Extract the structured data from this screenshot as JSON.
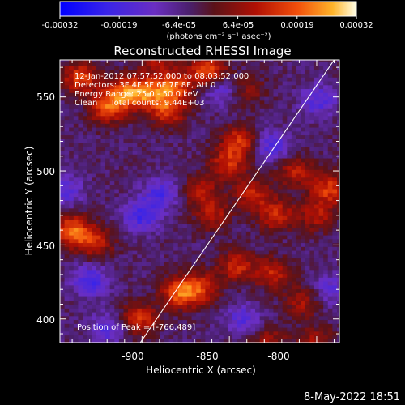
{
  "chart_data": {
    "type": "heatmap",
    "title": "Reconstructed RHESSI Image",
    "xlabel": "Heliocentric X (arcsec)",
    "ylabel": "Heliocentric Y (arcsec)",
    "xlim": [
      -947,
      -787
    ],
    "ylim": [
      384,
      575
    ],
    "xticks": [
      "-900",
      "-850",
      "-800"
    ],
    "yticks": [
      "400",
      "450",
      "500",
      "550"
    ],
    "colorbar": {
      "min": -0.00032,
      "max": 0.00032,
      "ticks": [
        "-0.00032",
        "-0.00019",
        "-6.4e-05",
        "6.4e-05",
        "0.00019",
        "0.00032"
      ],
      "units_label": "(photons cm⁻² s⁻¹ asec⁻²)"
    },
    "annotations": {
      "time_range": "12-Jan-2012 07:57:52.000 to 08:03:52.000",
      "detectors": "Detectors: 3F 4F 5F 6F 7F 8F, Att 0",
      "energy_range": "Energy Range: 25.0 - 50.0 keV",
      "clean_total": "Clean     Total counts: 9.44E+03",
      "peak_position": "Position of Peak = [-766,489]"
    },
    "limb_line": {
      "from": [
        -901,
        384
      ],
      "to": [
        -790,
        575
      ]
    },
    "hot_spots": [
      {
        "x": -935,
        "y": 563,
        "v": 0.00021
      },
      {
        "x": -909,
        "y": 553,
        "v": 0.00023
      },
      {
        "x": -896,
        "y": 553,
        "v": 0.00021
      },
      {
        "x": -881,
        "y": 557,
        "v": 0.0002
      },
      {
        "x": -862,
        "y": 568,
        "v": 0.00024
      },
      {
        "x": -885,
        "y": 541,
        "v": 0.00018
      },
      {
        "x": -920,
        "y": 543,
        "v": 0.00021
      },
      {
        "x": -844,
        "y": 520,
        "v": 0.00019
      },
      {
        "x": -851,
        "y": 505,
        "v": 0.00017
      },
      {
        "x": -836,
        "y": 485,
        "v": 0.00016
      },
      {
        "x": -866,
        "y": 486,
        "v": 0.00014
      },
      {
        "x": -859,
        "y": 470,
        "v": 0.00013
      },
      {
        "x": -823,
        "y": 470,
        "v": 0.00017
      },
      {
        "x": -812,
        "y": 500,
        "v": 0.00015
      },
      {
        "x": -800,
        "y": 470,
        "v": 0.00014
      },
      {
        "x": -766,
        "y": 489,
        "v": 0.00032
      },
      {
        "x": -793,
        "y": 488,
        "v": 0.00019
      },
      {
        "x": -940,
        "y": 460,
        "v": 0.00023
      },
      {
        "x": -927,
        "y": 452,
        "v": 0.00017
      },
      {
        "x": -902,
        "y": 400,
        "v": 0.00019
      },
      {
        "x": -879,
        "y": 418,
        "v": 0.00022
      },
      {
        "x": -867,
        "y": 421,
        "v": 0.00018
      },
      {
        "x": -846,
        "y": 436,
        "v": 0.00017
      },
      {
        "x": -825,
        "y": 431,
        "v": 0.00016
      },
      {
        "x": -808,
        "y": 412,
        "v": 0.00013
      },
      {
        "x": -828,
        "y": 385,
        "v": 0.00012
      },
      {
        "x": -801,
        "y": 385,
        "v": 0.00012
      },
      {
        "x": -891,
        "y": 575,
        "v": 0.00013
      },
      {
        "x": -840,
        "y": 555,
        "v": 0.0001
      }
    ],
    "cold_spots": [
      {
        "x": -900,
        "y": 470,
        "v": -0.00016
      },
      {
        "x": -889,
        "y": 485,
        "v": -0.00014
      },
      {
        "x": -930,
        "y": 426,
        "v": -0.00016
      },
      {
        "x": -919,
        "y": 394,
        "v": -0.00013
      },
      {
        "x": -855,
        "y": 556,
        "v": -0.00013
      },
      {
        "x": -826,
        "y": 517,
        "v": -0.00014
      },
      {
        "x": -799,
        "y": 548,
        "v": -0.00013
      },
      {
        "x": -944,
        "y": 487,
        "v": -0.00012
      },
      {
        "x": -842,
        "y": 400,
        "v": -0.00012
      },
      {
        "x": -792,
        "y": 420,
        "v": -0.00011
      }
    ]
  },
  "footer_timestamp": "8-May-2022 18:51"
}
